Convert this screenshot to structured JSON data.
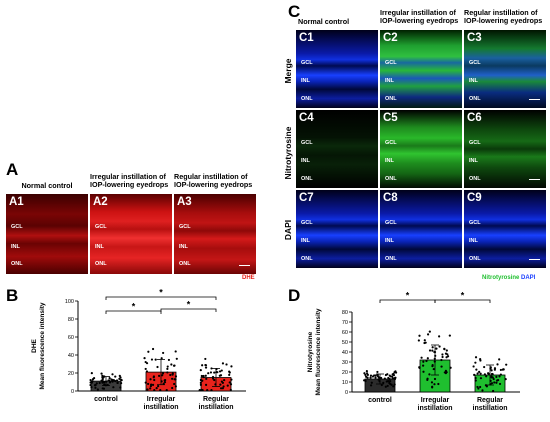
{
  "panel_a": {
    "letter": "A",
    "columns": [
      "Normal control",
      "Irregular instillation of IOP-lowering eyedrops",
      "Regular instillation of IOP-lowering eyedrops"
    ],
    "tiles": [
      "A1",
      "A2",
      "A3"
    ],
    "layers": [
      "GCL",
      "INL",
      "ONL"
    ],
    "stain_label": "DHE",
    "stain_color": "#e8231c"
  },
  "panel_b": {
    "letter": "B"
  },
  "panel_c": {
    "letter": "C",
    "columns": [
      "Normal control",
      "Irregular instillation of IOP-lowering eyedrops",
      "Regular instillation of IOP-lowering eyedrops"
    ],
    "rows": [
      "Merge",
      "Nitrotyrosine",
      "DAPI"
    ],
    "tiles": [
      [
        "C1",
        "C2",
        "C3"
      ],
      [
        "C4",
        "C5",
        "C6"
      ],
      [
        "C7",
        "C8",
        "C9"
      ]
    ],
    "layers": [
      "GCL",
      "INL",
      "ONL"
    ],
    "legend_green": "Nitrotyrosine",
    "legend_blue": "DAPI",
    "green_color": "#1fbf2f",
    "blue_color": "#1a3fff"
  },
  "panel_d": {
    "letter": "D"
  },
  "chart_data": [
    {
      "panel": "B",
      "type": "bar",
      "ylabel": "DHE\nMean fluorescence intensity",
      "categories": [
        "control",
        "Irregular\ninstillation",
        "Regular\ninstillation"
      ],
      "values": [
        11,
        21,
        15
      ],
      "errors": [
        5,
        14,
        10
      ],
      "ylim": [
        0,
        100
      ],
      "yticks": [
        0,
        20,
        40,
        60,
        80,
        100
      ],
      "bar_colors": [
        "#3b3b3b",
        "#e8231c",
        "#e8231c"
      ],
      "significance": [
        {
          "from": 0,
          "to": 1,
          "label": "*"
        },
        {
          "from": 1,
          "to": 2,
          "label": "*"
        },
        {
          "from": 0,
          "to": 2,
          "label": "*"
        }
      ]
    },
    {
      "panel": "D",
      "type": "bar",
      "ylabel": "Nitrotyrosine\nMean fluorescence intensity",
      "categories": [
        "control",
        "Irregular\ninstillation",
        "Regular\ninstillation"
      ],
      "values": [
        13,
        32,
        17
      ],
      "errors": [
        5,
        15,
        10
      ],
      "ylim": [
        0,
        80
      ],
      "yticks": [
        0,
        10,
        20,
        30,
        40,
        50,
        60,
        70,
        80
      ],
      "bar_colors": [
        "#2b2b2b",
        "#1fbf2f",
        "#1fbf2f"
      ],
      "significance": [
        {
          "from": 0,
          "to": 1,
          "label": "*"
        },
        {
          "from": 1,
          "to": 2,
          "label": "*"
        }
      ]
    }
  ]
}
